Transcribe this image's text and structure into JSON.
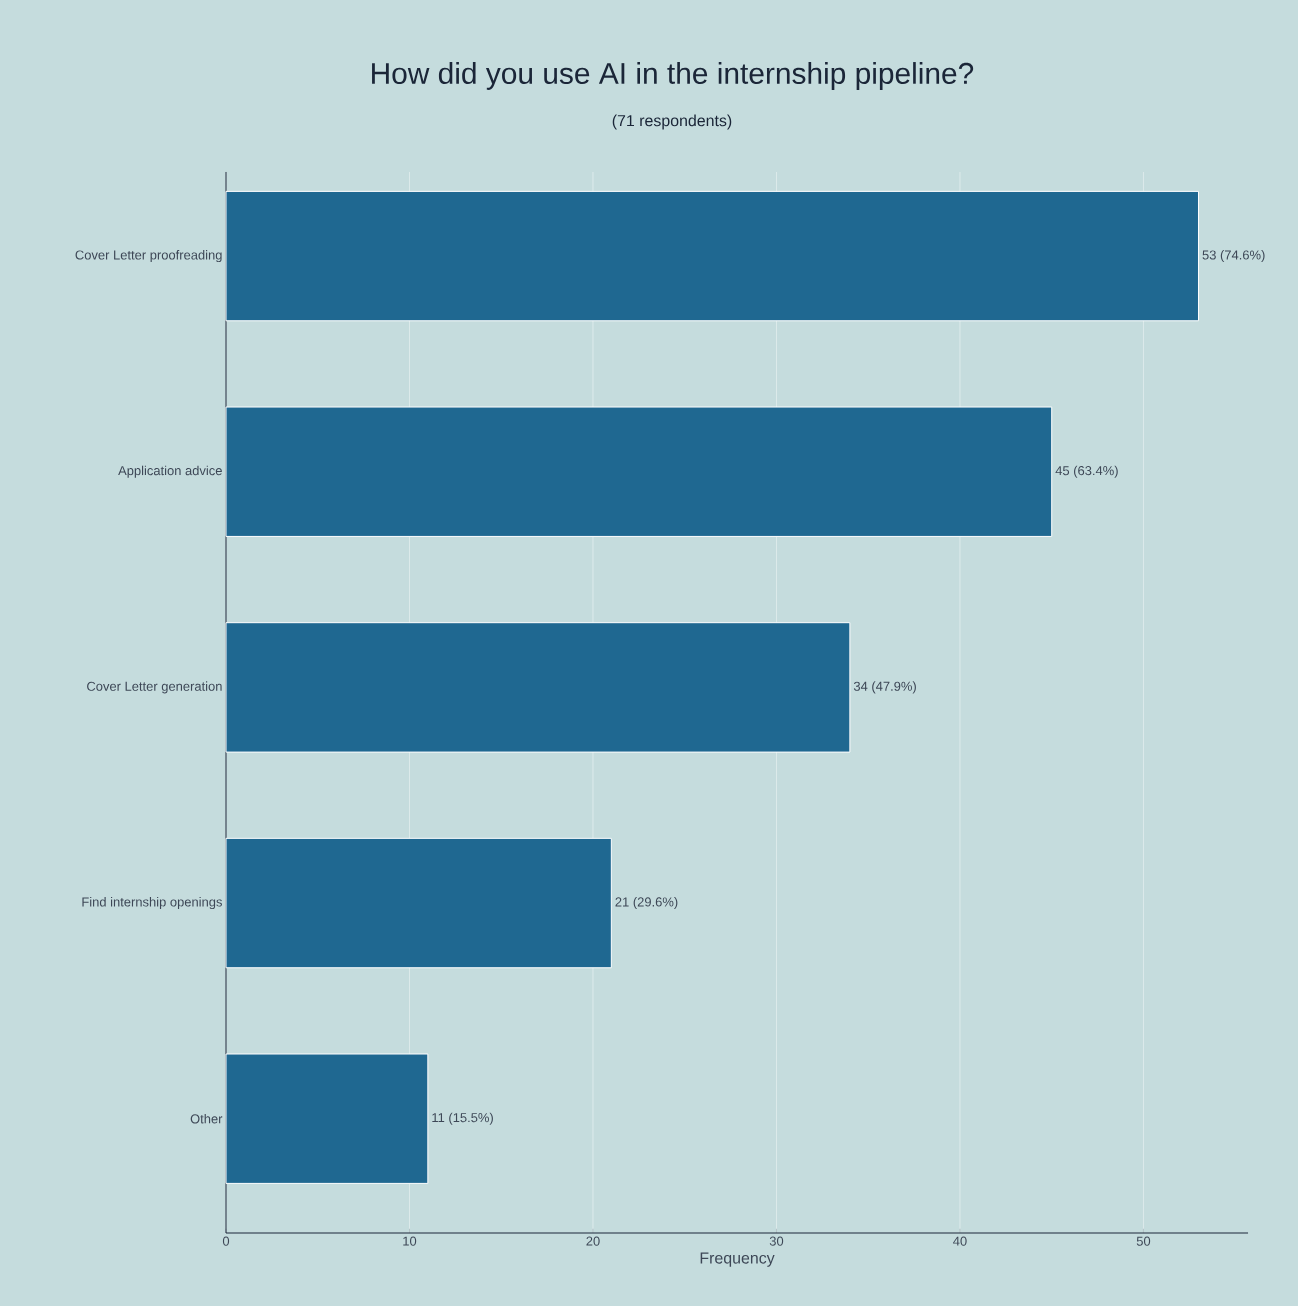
{
  "chart_data": {
    "type": "bar",
    "orientation": "horizontal",
    "title": "How did you use AI in the internship pipeline?",
    "subtitle": "(71 respondents)",
    "xlabel": "Frequency",
    "categories": [
      "Cover Letter proofreading",
      "Application advice",
      "Cover Letter generation",
      "Find internship openings",
      "Other"
    ],
    "values": [
      53,
      45,
      34,
      21,
      11
    ],
    "value_labels": [
      "53 (74.6%)",
      "45 (63.4%)",
      "34 (47.9%)",
      "21 (29.6%)",
      "11 (15.5%)"
    ],
    "color": "#1f6891",
    "xlim": [
      0,
      55.7
    ],
    "xticks": [
      0,
      10,
      20,
      30,
      40,
      50
    ],
    "grid": "x"
  }
}
